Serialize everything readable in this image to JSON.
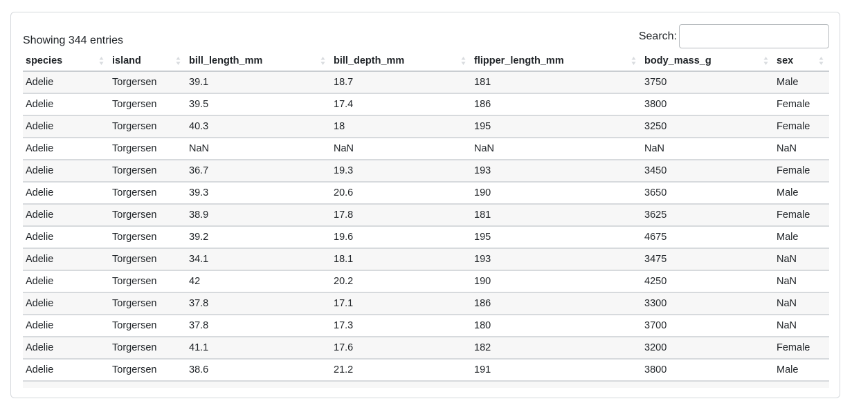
{
  "info": "Showing 344 entries",
  "search": {
    "label": "Search:",
    "value": "",
    "placeholder": ""
  },
  "columns": [
    "species",
    "island",
    "bill_length_mm",
    "bill_depth_mm",
    "flipper_length_mm",
    "body_mass_g",
    "sex"
  ],
  "rows": [
    [
      "Adelie",
      "Torgersen",
      "39.1",
      "18.7",
      "181",
      "3750",
      "Male"
    ],
    [
      "Adelie",
      "Torgersen",
      "39.5",
      "17.4",
      "186",
      "3800",
      "Female"
    ],
    [
      "Adelie",
      "Torgersen",
      "40.3",
      "18",
      "195",
      "3250",
      "Female"
    ],
    [
      "Adelie",
      "Torgersen",
      "NaN",
      "NaN",
      "NaN",
      "NaN",
      "NaN"
    ],
    [
      "Adelie",
      "Torgersen",
      "36.7",
      "19.3",
      "193",
      "3450",
      "Female"
    ],
    [
      "Adelie",
      "Torgersen",
      "39.3",
      "20.6",
      "190",
      "3650",
      "Male"
    ],
    [
      "Adelie",
      "Torgersen",
      "38.9",
      "17.8",
      "181",
      "3625",
      "Female"
    ],
    [
      "Adelie",
      "Torgersen",
      "39.2",
      "19.6",
      "195",
      "4675",
      "Male"
    ],
    [
      "Adelie",
      "Torgersen",
      "34.1",
      "18.1",
      "193",
      "3475",
      "NaN"
    ],
    [
      "Adelie",
      "Torgersen",
      "42",
      "20.2",
      "190",
      "4250",
      "NaN"
    ],
    [
      "Adelie",
      "Torgersen",
      "37.8",
      "17.1",
      "186",
      "3300",
      "NaN"
    ],
    [
      "Adelie",
      "Torgersen",
      "37.8",
      "17.3",
      "180",
      "3700",
      "NaN"
    ],
    [
      "Adelie",
      "Torgersen",
      "41.1",
      "17.6",
      "182",
      "3200",
      "Female"
    ],
    [
      "Adelie",
      "Torgersen",
      "38.6",
      "21.2",
      "191",
      "3800",
      "Male"
    ]
  ]
}
